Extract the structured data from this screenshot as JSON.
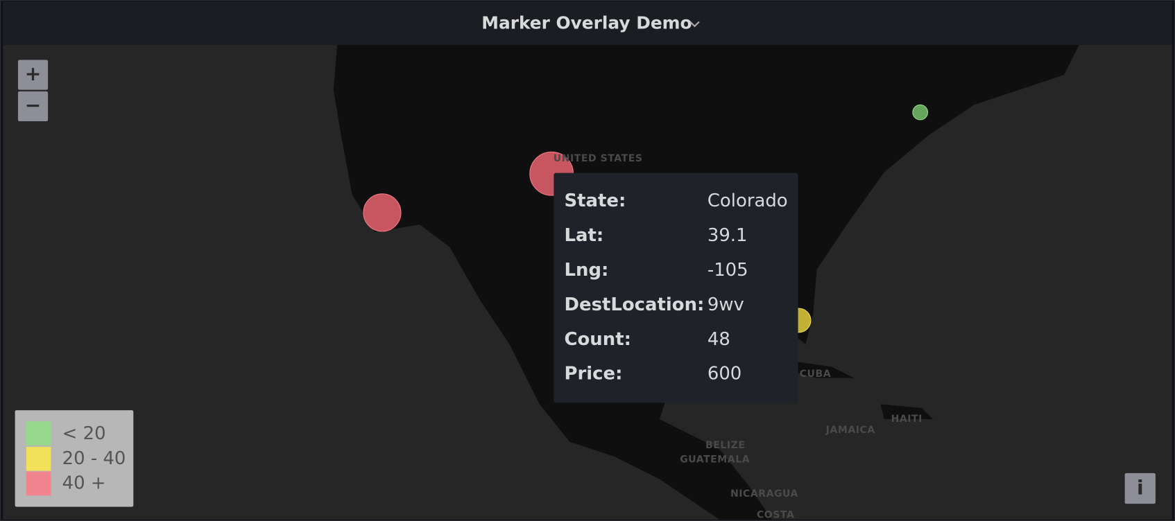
{
  "header": {
    "title": "Marker Overlay Demo"
  },
  "zoom": {
    "in": "+",
    "out": "−"
  },
  "map_labels": [
    "UNITED STATES",
    "CUBA",
    "HAITI",
    "JAMAICA",
    "BELIZE",
    "GUATEMALA",
    "NICARAGUA",
    "COSTA"
  ],
  "legend": [
    "< 20",
    "20 - 40",
    "40 +"
  ],
  "tooltip": {
    "rows": [
      {
        "label": "State:",
        "value": "Colorado"
      },
      {
        "label": "Lat:",
        "value": 39.1
      },
      {
        "label": "Lng:",
        "value": -105
      },
      {
        "label": "DestLocation:",
        "value": "9wv"
      },
      {
        "label": "Count:",
        "value": 48
      },
      {
        "label": "Price:",
        "value": 600
      }
    ]
  },
  "info_button": "i"
}
